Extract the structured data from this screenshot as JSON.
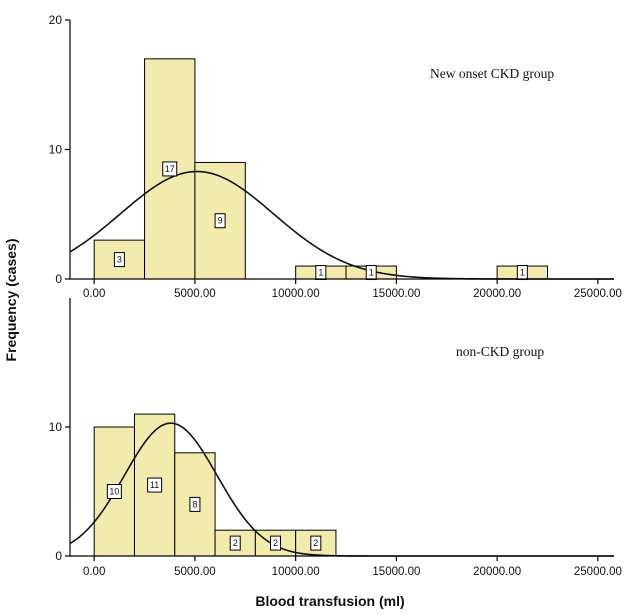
{
  "figure": {
    "ylabel": "Frequency (cases)",
    "xlabel": "Blood transfusion (ml)"
  },
  "chart_data": [
    {
      "type": "bar",
      "title": "New onset CKD group",
      "bin_edges": [
        0,
        2500,
        5000,
        7500,
        10000,
        12500,
        15000,
        17500,
        20000,
        22500
      ],
      "values": [
        3,
        17,
        9,
        0,
        1,
        1,
        0,
        0,
        1
      ],
      "bar_labels": [
        "3",
        "17",
        "9",
        "",
        "1",
        "1",
        "",
        "",
        "1"
      ],
      "normal_curve": {
        "mean": 5100,
        "sd": 3800,
        "peak": 8.3
      },
      "xlim": [
        -1200,
        25800
      ],
      "ylim": [
        0,
        20
      ],
      "xticks": [
        0,
        5000,
        10000,
        15000,
        20000,
        25000
      ],
      "xtick_labels": [
        "0.00",
        "5000.00",
        "10000.00",
        "15000.00",
        "20000.00",
        "25000.00"
      ],
      "yticks": [
        0,
        10,
        20
      ],
      "ytick_labels": [
        "0",
        "10",
        "20"
      ]
    },
    {
      "type": "bar",
      "title": "non-CKD group",
      "bin_edges": [
        0,
        2000,
        4000,
        6000,
        8000,
        10000,
        12000
      ],
      "values": [
        10,
        11,
        8,
        2,
        2,
        2
      ],
      "bar_labels": [
        "10",
        "11",
        "8",
        "2",
        "2",
        "2"
      ],
      "normal_curve": {
        "mean": 3800,
        "sd": 2300,
        "peak": 10.3
      },
      "xlim": [
        -1200,
        25800
      ],
      "ylim": [
        0,
        20
      ],
      "xticks": [
        0,
        5000,
        10000,
        15000,
        20000,
        25000
      ],
      "xtick_labels": [
        "0.00",
        "5000.00",
        "10000.00",
        "15000.00",
        "20000.00",
        "25000.00"
      ],
      "yticks": [
        0,
        10
      ],
      "ytick_labels": [
        "0",
        "10"
      ]
    }
  ]
}
